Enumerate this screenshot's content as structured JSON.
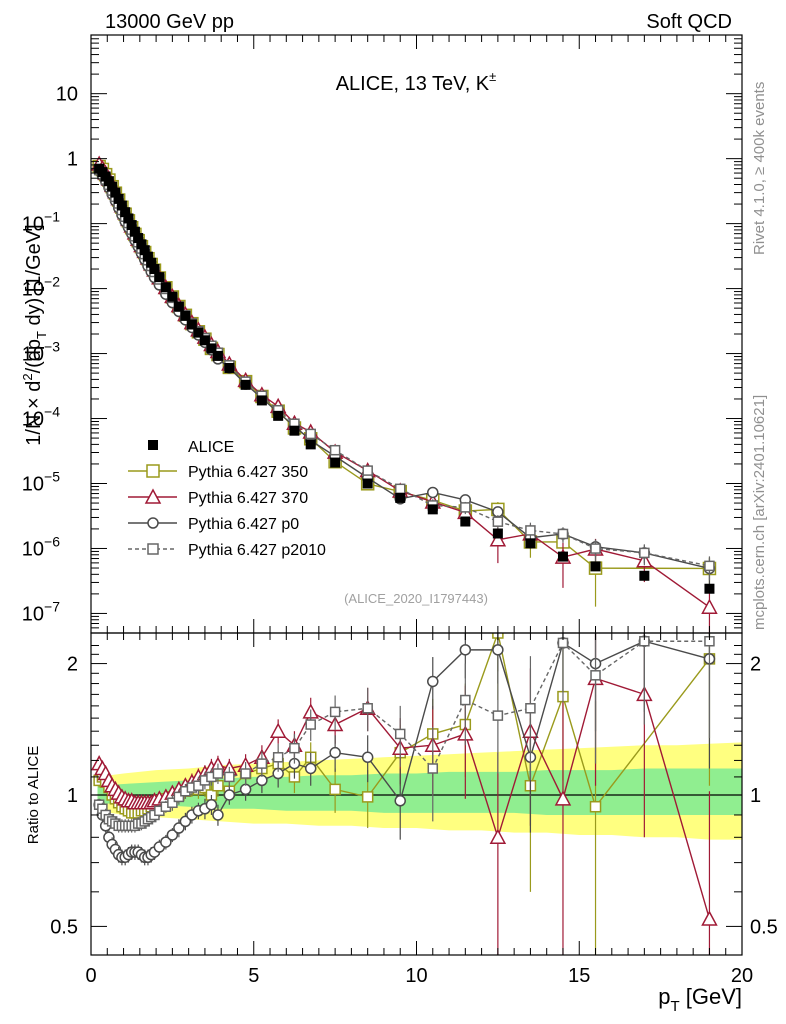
{
  "header": {
    "left": "13000 GeV pp",
    "right": "Soft QCD"
  },
  "side_text": {
    "rivet": "Rivet 4.1.0, ≥ 400k events",
    "mcplots": "mcplots.cern.ch [arXiv:2401.10621]"
  },
  "chart_data": [
    {
      "type": "scatter",
      "title": "ALICE, 13 TeV, K±",
      "title_main": "ALICE, 13 TeV, K",
      "title_sup": "±",
      "analysis_label": "(ALICE_2020_I1797443)",
      "ylabel": "1/N × d²/(dp_T dy) [1/GeV]",
      "yscale": "log",
      "xlim": [
        0,
        20
      ],
      "ylim": [
        5e-08,
        80
      ],
      "y_ticks": [
        {
          "v": 10,
          "l": "10"
        },
        {
          "v": 1,
          "l": "1"
        },
        {
          "v": 0.1,
          "l": "10",
          "e": "−1"
        },
        {
          "v": 0.01,
          "l": "10",
          "e": "−2"
        },
        {
          "v": 0.001,
          "l": "10",
          "e": "−3"
        },
        {
          "v": 0.0001,
          "l": "10",
          "e": "−4"
        },
        {
          "v": 1e-05,
          "l": "10",
          "e": "−5"
        },
        {
          "v": 1e-06,
          "l": "10",
          "e": "−6"
        },
        {
          "v": 1e-07,
          "l": "10",
          "e": "−7"
        }
      ],
      "legend": [
        {
          "key": "alice",
          "label": "ALICE",
          "color": "#000000"
        },
        {
          "key": "p350",
          "label": "Pythia 6.427 350",
          "color": "#9a9a1c"
        },
        {
          "key": "p370",
          "label": "Pythia 6.427 370",
          "color": "#a01a36"
        },
        {
          "key": "p0",
          "label": "Pythia 6.427 p0",
          "color": "#4a4a4a"
        },
        {
          "key": "p2010",
          "label": "Pythia 6.427 p2010",
          "color": "#666666"
        }
      ],
      "legend_position": "lower-left",
      "series": [
        {
          "name": "ALICE",
          "x": [
            0.25,
            0.35,
            0.45,
            0.55,
            0.65,
            0.75,
            0.85,
            0.95,
            1.05,
            1.15,
            1.25,
            1.35,
            1.45,
            1.55,
            1.65,
            1.75,
            1.85,
            1.95,
            2.1,
            2.3,
            2.5,
            2.7,
            2.9,
            3.1,
            3.3,
            3.5,
            3.7,
            3.9,
            4.25,
            4.75,
            5.25,
            5.75,
            6.25,
            6.75,
            7.5,
            8.5,
            9.5,
            10.5,
            11.5,
            12.5,
            13.5,
            14.5,
            15.5,
            17.0,
            19.0
          ],
          "y": [
            0.7,
            0.62,
            0.53,
            0.45,
            0.37,
            0.3,
            0.24,
            0.19,
            0.15,
            0.12,
            0.095,
            0.075,
            0.06,
            0.048,
            0.039,
            0.031,
            0.025,
            0.02,
            0.015,
            0.0105,
            0.0075,
            0.0053,
            0.0038,
            0.0028,
            0.0021,
            0.0016,
            0.0012,
            0.00092,
            0.0006,
            0.00033,
            0.00019,
            0.00011,
            6.5e-05,
            4e-05,
            2.1e-05,
            1e-05,
            6e-06,
            4e-06,
            2.6e-06,
            1.7e-06,
            1.2e-06,
            7.5e-07,
            5.3e-07,
            3.8e-07,
            2.4e-07
          ]
        }
      ]
    },
    {
      "type": "scatter",
      "ylabel": "Ratio to ALICE",
      "xlabel": "p_T [GeV]",
      "yscale": "log",
      "xlim": [
        0,
        20
      ],
      "ylim": [
        0.43,
        2.35
      ],
      "x_ticks": [
        0,
        5,
        10,
        15,
        20
      ],
      "y_ticks": [
        0.5,
        1,
        2
      ],
      "reference_line": 1,
      "uncertainty_bands": {
        "x": [
          0.2,
          1,
          2,
          3,
          4,
          5,
          6,
          7,
          8,
          9,
          10,
          11,
          12,
          13,
          14,
          15,
          16,
          17,
          18,
          19,
          20
        ],
        "inner_lo": [
          0.96,
          0.95,
          0.95,
          0.94,
          0.93,
          0.93,
          0.92,
          0.92,
          0.92,
          0.91,
          0.91,
          0.91,
          0.91,
          0.91,
          0.9,
          0.9,
          0.9,
          0.9,
          0.9,
          0.9,
          0.9
        ],
        "inner_hi": [
          1.05,
          1.06,
          1.07,
          1.08,
          1.09,
          1.1,
          1.1,
          1.11,
          1.11,
          1.12,
          1.12,
          1.13,
          1.13,
          1.13,
          1.14,
          1.14,
          1.14,
          1.15,
          1.15,
          1.15,
          1.15
        ],
        "outer_lo": [
          0.92,
          0.9,
          0.89,
          0.88,
          0.87,
          0.86,
          0.86,
          0.85,
          0.85,
          0.84,
          0.84,
          0.83,
          0.83,
          0.82,
          0.82,
          0.81,
          0.81,
          0.8,
          0.8,
          0.79,
          0.79
        ],
        "outer_hi": [
          1.1,
          1.12,
          1.14,
          1.15,
          1.17,
          1.18,
          1.19,
          1.2,
          1.21,
          1.22,
          1.23,
          1.24,
          1.25,
          1.26,
          1.27,
          1.28,
          1.29,
          1.3,
          1.3,
          1.31,
          1.32
        ],
        "inner_color": "#90ee90",
        "outer_color": "#ffff80"
      },
      "series": [
        {
          "name": "Pythia 6.427 350",
          "x": [
            0.25,
            0.35,
            0.45,
            0.55,
            0.65,
            0.75,
            0.85,
            0.95,
            1.05,
            1.15,
            1.25,
            1.35,
            1.45,
            1.55,
            1.65,
            1.75,
            1.85,
            1.95,
            2.1,
            2.3,
            2.5,
            2.7,
            2.9,
            3.1,
            3.3,
            3.5,
            3.7,
            3.9,
            4.25,
            4.75,
            5.25,
            5.75,
            6.25,
            6.75,
            7.5,
            8.5,
            9.5,
            10.5,
            11.5,
            12.5,
            13.5,
            14.5,
            15.5,
            19.0
          ],
          "y": [
            1.08,
            1.1,
            1.07,
            1.04,
            1.0,
            0.98,
            0.96,
            0.94,
            0.93,
            0.92,
            0.91,
            0.91,
            0.91,
            0.92,
            0.92,
            0.93,
            0.94,
            0.96,
            0.97,
            0.98,
            0.99,
            1.0,
            1.02,
            1.03,
            1.03,
            1.04,
            1.0,
            1.05,
            1.02,
            1.12,
            1.15,
            1.18,
            1.1,
            1.22,
            1.03,
            0.99,
            1.25,
            1.38,
            1.45,
            2.35,
            1.05,
            1.68,
            0.94,
            2.05
          ],
          "err": [
            0.04,
            0.03,
            0.03,
            0.03,
            0.03,
            0.03,
            0.03,
            0.03,
            0.03,
            0.03,
            0.03,
            0.03,
            0.03,
            0.03,
            0.03,
            0.03,
            0.03,
            0.03,
            0.03,
            0.03,
            0.04,
            0.04,
            0.04,
            0.04,
            0.05,
            0.05,
            0.05,
            0.06,
            0.05,
            0.06,
            0.07,
            0.08,
            0.09,
            0.1,
            0.12,
            0.15,
            0.2,
            0.28,
            0.35,
            0.7,
            0.45,
            0.6,
            0.7,
            1.0
          ]
        },
        {
          "name": "Pythia 6.427 370",
          "x": [
            0.25,
            0.35,
            0.45,
            0.55,
            0.65,
            0.75,
            0.85,
            0.95,
            1.05,
            1.15,
            1.25,
            1.35,
            1.45,
            1.55,
            1.65,
            1.75,
            1.85,
            1.95,
            2.1,
            2.3,
            2.5,
            2.7,
            2.9,
            3.1,
            3.3,
            3.5,
            3.7,
            3.9,
            4.25,
            4.75,
            5.25,
            5.75,
            6.25,
            6.75,
            7.5,
            8.5,
            9.5,
            10.5,
            11.5,
            12.5,
            13.5,
            14.5,
            15.5,
            17.0,
            19.0
          ],
          "y": [
            1.18,
            1.15,
            1.12,
            1.08,
            1.05,
            1.03,
            1.01,
            0.99,
            0.98,
            0.97,
            0.97,
            0.96,
            0.96,
            0.96,
            0.96,
            0.96,
            0.96,
            0.97,
            0.98,
            0.99,
            1.01,
            1.03,
            1.05,
            1.07,
            1.1,
            1.12,
            1.15,
            1.17,
            1.15,
            1.17,
            1.22,
            1.4,
            1.3,
            1.55,
            1.45,
            1.58,
            1.28,
            1.3,
            1.38,
            0.8,
            1.4,
            0.98,
            1.85,
            1.7,
            0.52
          ],
          "err": [
            0.04,
            0.03,
            0.03,
            0.03,
            0.03,
            0.03,
            0.03,
            0.03,
            0.03,
            0.03,
            0.03,
            0.03,
            0.03,
            0.03,
            0.03,
            0.03,
            0.03,
            0.03,
            0.03,
            0.04,
            0.04,
            0.04,
            0.04,
            0.05,
            0.05,
            0.05,
            0.06,
            0.06,
            0.06,
            0.07,
            0.08,
            0.09,
            0.1,
            0.12,
            0.14,
            0.18,
            0.22,
            0.3,
            0.4,
            0.45,
            0.55,
            0.65,
            0.8,
            0.9,
            0.5
          ]
        },
        {
          "name": "Pythia 6.427 p0",
          "x": [
            0.25,
            0.35,
            0.45,
            0.55,
            0.65,
            0.75,
            0.85,
            0.95,
            1.05,
            1.15,
            1.25,
            1.35,
            1.45,
            1.55,
            1.65,
            1.75,
            1.85,
            1.95,
            2.1,
            2.3,
            2.5,
            2.7,
            2.9,
            3.1,
            3.3,
            3.5,
            3.7,
            3.9,
            4.25,
            4.75,
            5.25,
            5.75,
            6.25,
            6.75,
            7.5,
            8.5,
            9.5,
            10.5,
            11.5,
            12.5,
            13.5,
            14.5,
            15.5,
            17.0,
            19.0
          ],
          "y": [
            0.95,
            0.9,
            0.85,
            0.8,
            0.77,
            0.75,
            0.73,
            0.72,
            0.72,
            0.73,
            0.74,
            0.74,
            0.74,
            0.73,
            0.72,
            0.72,
            0.73,
            0.74,
            0.76,
            0.78,
            0.81,
            0.84,
            0.87,
            0.9,
            0.92,
            0.93,
            0.95,
            0.9,
            1.0,
            1.03,
            1.08,
            1.12,
            1.18,
            1.15,
            1.25,
            1.22,
            0.97,
            1.82,
            2.15,
            2.15,
            1.22,
            2.23,
            2.0,
            2.25,
            2.05
          ],
          "err": [
            0.03,
            0.03,
            0.03,
            0.03,
            0.03,
            0.03,
            0.03,
            0.03,
            0.03,
            0.03,
            0.03,
            0.03,
            0.03,
            0.03,
            0.03,
            0.03,
            0.03,
            0.03,
            0.03,
            0.03,
            0.03,
            0.04,
            0.04,
            0.04,
            0.04,
            0.05,
            0.05,
            0.05,
            0.05,
            0.06,
            0.07,
            0.08,
            0.09,
            0.1,
            0.12,
            0.15,
            0.18,
            0.25,
            0.3,
            0.35,
            0.4,
            0.5,
            0.6,
            0.7,
            0.9
          ]
        },
        {
          "name": "Pythia 6.427 p2010",
          "x": [
            0.25,
            0.35,
            0.45,
            0.55,
            0.65,
            0.75,
            0.85,
            0.95,
            1.05,
            1.15,
            1.25,
            1.35,
            1.45,
            1.55,
            1.65,
            1.75,
            1.85,
            1.95,
            2.1,
            2.3,
            2.5,
            2.7,
            2.9,
            3.1,
            3.3,
            3.5,
            3.7,
            3.9,
            4.25,
            4.75,
            5.25,
            5.75,
            6.25,
            6.75,
            7.5,
            8.5,
            9.5,
            10.5,
            11.5,
            12.5,
            13.5,
            14.5,
            15.5,
            17.0,
            19.0
          ],
          "y": [
            0.95,
            0.93,
            0.9,
            0.88,
            0.87,
            0.86,
            0.85,
            0.85,
            0.85,
            0.85,
            0.85,
            0.85,
            0.86,
            0.86,
            0.87,
            0.88,
            0.89,
            0.9,
            0.92,
            0.94,
            0.96,
            0.99,
            1.02,
            1.04,
            1.05,
            1.08,
            1.1,
            1.12,
            1.1,
            1.12,
            1.18,
            1.22,
            1.28,
            1.45,
            1.55,
            1.58,
            1.38,
            1.15,
            1.65,
            1.52,
            1.58,
            2.23,
            1.88,
            2.25,
            2.25
          ],
          "err": [
            0.03,
            0.03,
            0.03,
            0.03,
            0.03,
            0.03,
            0.03,
            0.03,
            0.03,
            0.03,
            0.03,
            0.03,
            0.03,
            0.03,
            0.03,
            0.03,
            0.03,
            0.03,
            0.03,
            0.03,
            0.04,
            0.04,
            0.04,
            0.04,
            0.05,
            0.05,
            0.05,
            0.06,
            0.06,
            0.07,
            0.08,
            0.09,
            0.1,
            0.12,
            0.14,
            0.18,
            0.22,
            0.28,
            0.35,
            0.4,
            0.5,
            0.6,
            0.7,
            0.8,
            0.9
          ]
        }
      ]
    }
  ]
}
